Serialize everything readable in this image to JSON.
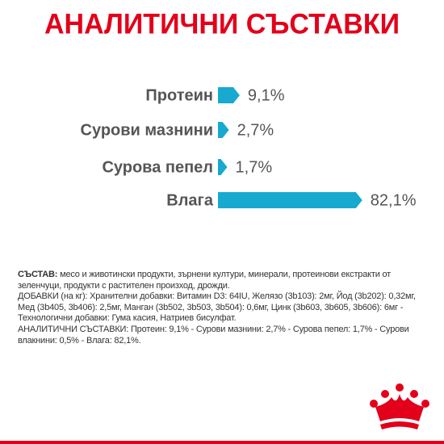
{
  "chart_data": {
    "type": "bar",
    "orientation": "horizontal",
    "title": "АНАЛИТИЧНИ СЪСТАВКИ",
    "categories": [
      "Протеин",
      "Сурови мазнини",
      "Сурова пепел",
      "Влага"
    ],
    "values": [
      9.1,
      2.7,
      1.7,
      82.1
    ],
    "value_labels": [
      "9,1%",
      "2,7%",
      "1,7%",
      "82,1%"
    ],
    "color": "#17a9cf"
  },
  "composition": {
    "label": "СЪСТАВ:",
    "text": "месо и животински продукти, зърнени култури, минерали, протеинови екстракти от зеленчуци, продукти с растителен произход, дрожди.",
    "additives": "ДОБАВКИ (на кг): Хранителни добавки: Витамин D3: 64IU, Желязо (3b103): 2мг, Йод (3b202): 0,32мг, Мед (3b405, 3b406): 2,5мг, Манган (3b502, 3b503, 3b504): 0,6мг, Цинк (3b603, 3b605, 3b606): 6мг - Технологични добавки: Гума касия, Натриев бисулфат.",
    "analytical": "АНАЛИТИЧНИ СЪСТАВКИ: Протеин: 9,1% - Сурови мазнини: 2,7% - Сурова пепел: 1,7% - Сурови влакнини: 0,5% - Влага: 82,1%."
  }
}
